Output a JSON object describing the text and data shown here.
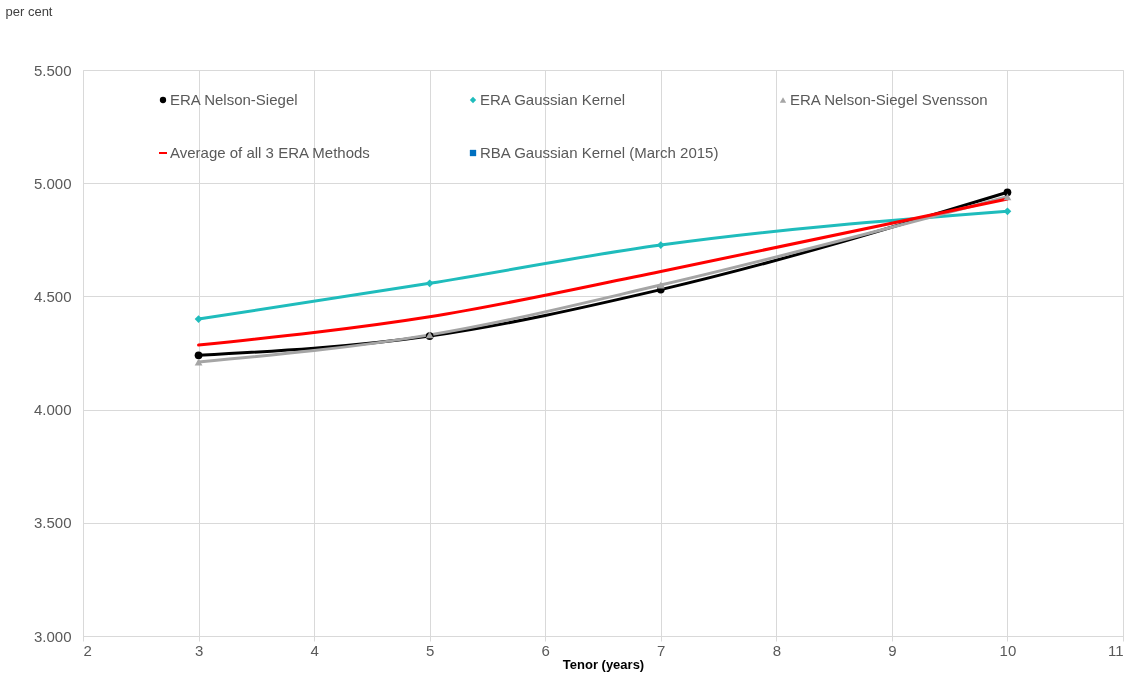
{
  "chart_data": {
    "type": "line",
    "ylabel": "per cent",
    "xlabel": "Tenor (years)",
    "xlim": [
      2,
      11
    ],
    "xticks": [
      2,
      3,
      4,
      5,
      6,
      7,
      8,
      9,
      10,
      11
    ],
    "ylim": [
      3,
      5.5
    ],
    "yticks": [
      {
        "value": 3,
        "label": "3.000"
      },
      {
        "value": 3.5,
        "label": "3.500"
      },
      {
        "value": 4,
        "label": "4.000"
      },
      {
        "value": 4.5,
        "label": "4.500"
      },
      {
        "value": 5,
        "label": "5.000"
      },
      {
        "value": 5.5,
        "label": "5.500"
      }
    ],
    "x": [
      3,
      5,
      7,
      10
    ],
    "series": [
      {
        "name": "ERA Nelson-Siegel",
        "color": "#000000",
        "marker": "circle",
        "values": [
          4.24,
          4.325,
          4.53,
          4.96
        ]
      },
      {
        "name": "ERA Gaussian Kernel",
        "color": "#1fbcbc",
        "marker": "diamond",
        "values": [
          4.4,
          4.558,
          4.727,
          4.876
        ]
      },
      {
        "name": "ERA Nelson-Siegel Svensson",
        "color": "#a5a5a5",
        "marker": "triangle",
        "values": [
          4.21,
          4.33,
          4.55,
          4.94
        ]
      },
      {
        "name": "Average of all 3 ERA Methods",
        "color": "#ff0000",
        "marker": "none",
        "values": [
          4.285,
          4.41,
          4.61,
          4.93
        ]
      },
      {
        "name": "RBA Gaussian Kernel (March 2015)",
        "color": "#0070c0",
        "marker": "square",
        "values": [
          null,
          null,
          null,
          null
        ]
      }
    ],
    "grid": true,
    "legend": "top",
    "line_style": "solid"
  }
}
